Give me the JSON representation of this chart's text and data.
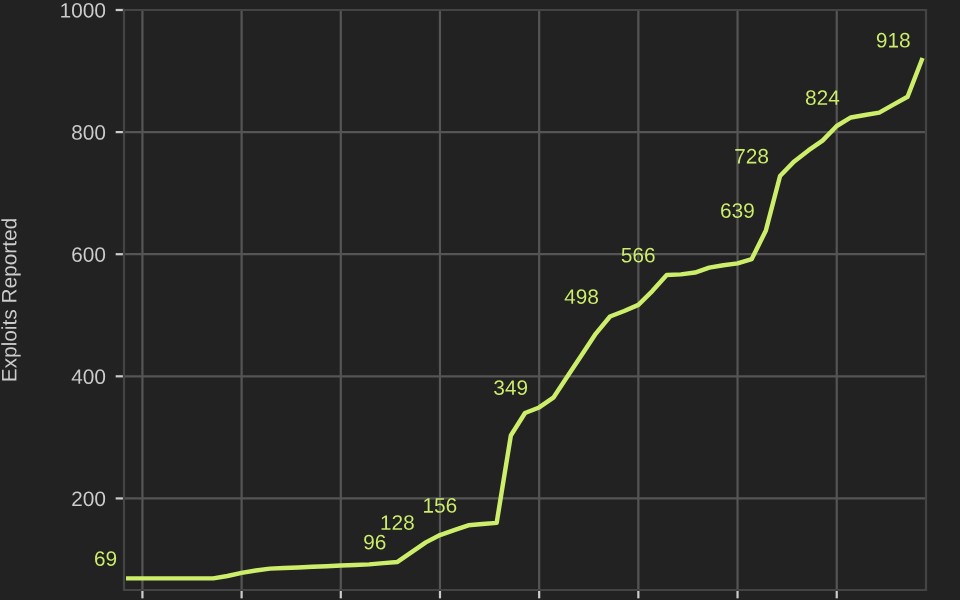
{
  "chart_data": {
    "type": "line",
    "ylabel": "Exploits Reported",
    "categories": [
      null,
      null,
      null,
      null,
      null,
      null,
      null,
      null,
      null,
      null,
      null,
      null,
      null,
      null,
      null,
      null,
      null,
      null,
      null,
      null,
      null,
      null,
      null,
      null,
      null,
      null,
      null,
      null,
      null,
      null,
      null,
      null,
      null,
      null,
      null,
      null,
      null,
      null,
      null,
      null,
      null,
      null,
      null,
      null,
      null,
      null,
      null,
      null,
      null,
      null,
      null,
      null,
      null,
      null,
      null,
      null,
      null
    ],
    "series": [
      {
        "color": "#cdee6a",
        "values": [
          69,
          69,
          69,
          69,
          69,
          69,
          69,
          73,
          78,
          82,
          85,
          86,
          87,
          88,
          89,
          90,
          91,
          92,
          94,
          96,
          112,
          128,
          140,
          148,
          156,
          158,
          160,
          303,
          340,
          349,
          365,
          400,
          435,
          470,
          498,
          507,
          517,
          540,
          566,
          567,
          570,
          578,
          582,
          585,
          592,
          639,
          728,
          752,
          770,
          786,
          810,
          824,
          828,
          832,
          845,
          858,
          918
        ],
        "value_labels": [
          "69",
          null,
          null,
          null,
          null,
          null,
          null,
          null,
          null,
          null,
          null,
          null,
          null,
          null,
          null,
          null,
          null,
          null,
          null,
          "96",
          null,
          "128",
          null,
          null,
          "156",
          null,
          null,
          null,
          null,
          "349",
          null,
          null,
          null,
          null,
          "498",
          null,
          null,
          null,
          "566",
          null,
          null,
          null,
          null,
          null,
          null,
          "639",
          "728",
          null,
          null,
          null,
          null,
          "824",
          null,
          null,
          null,
          null,
          "918"
        ]
      }
    ],
    "ylim": [
      50,
      1000
    ],
    "yticks": [
      200,
      400,
      600,
      800,
      1000
    ],
    "grid": true,
    "marker": "none",
    "line_style": "solid"
  }
}
